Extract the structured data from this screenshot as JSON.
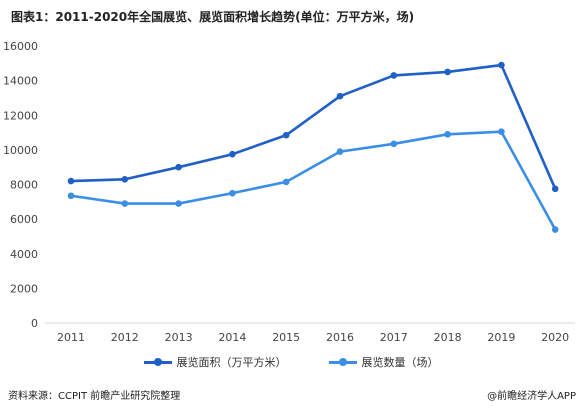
{
  "title": "图表1：2011-2020年全国展览、展览面积增长趋势(单位：万平方米，场)",
  "source": "资料来源：CCPIT 前瞻产业研究院整理",
  "brand": "@前瞻经济学人APP",
  "colors": {
    "series1": "#1f5fc7",
    "series2": "#3a8ee6"
  },
  "chart_data": {
    "type": "line",
    "title": "图表1：2011-2020年全国展览、展览面积增长趋势(单位：万平方米，场)",
    "x": [
      "2011",
      "2012",
      "2013",
      "2014",
      "2015",
      "2016",
      "2017",
      "2018",
      "2019",
      "2020"
    ],
    "ylim": [
      0,
      16000
    ],
    "yticks": [
      0,
      2000,
      4000,
      6000,
      8000,
      10000,
      12000,
      14000,
      16000
    ],
    "grid": false,
    "legend_position": "bottom",
    "series": [
      {
        "name": "展览面积（万平方米）",
        "values": [
          8200,
          8300,
          9000,
          9750,
          10850,
          13100,
          14300,
          14500,
          14900,
          7750
        ]
      },
      {
        "name": "展览数量（场）",
        "values": [
          7350,
          6900,
          6900,
          7500,
          8150,
          9900,
          10350,
          10900,
          11050,
          5400
        ]
      }
    ]
  }
}
